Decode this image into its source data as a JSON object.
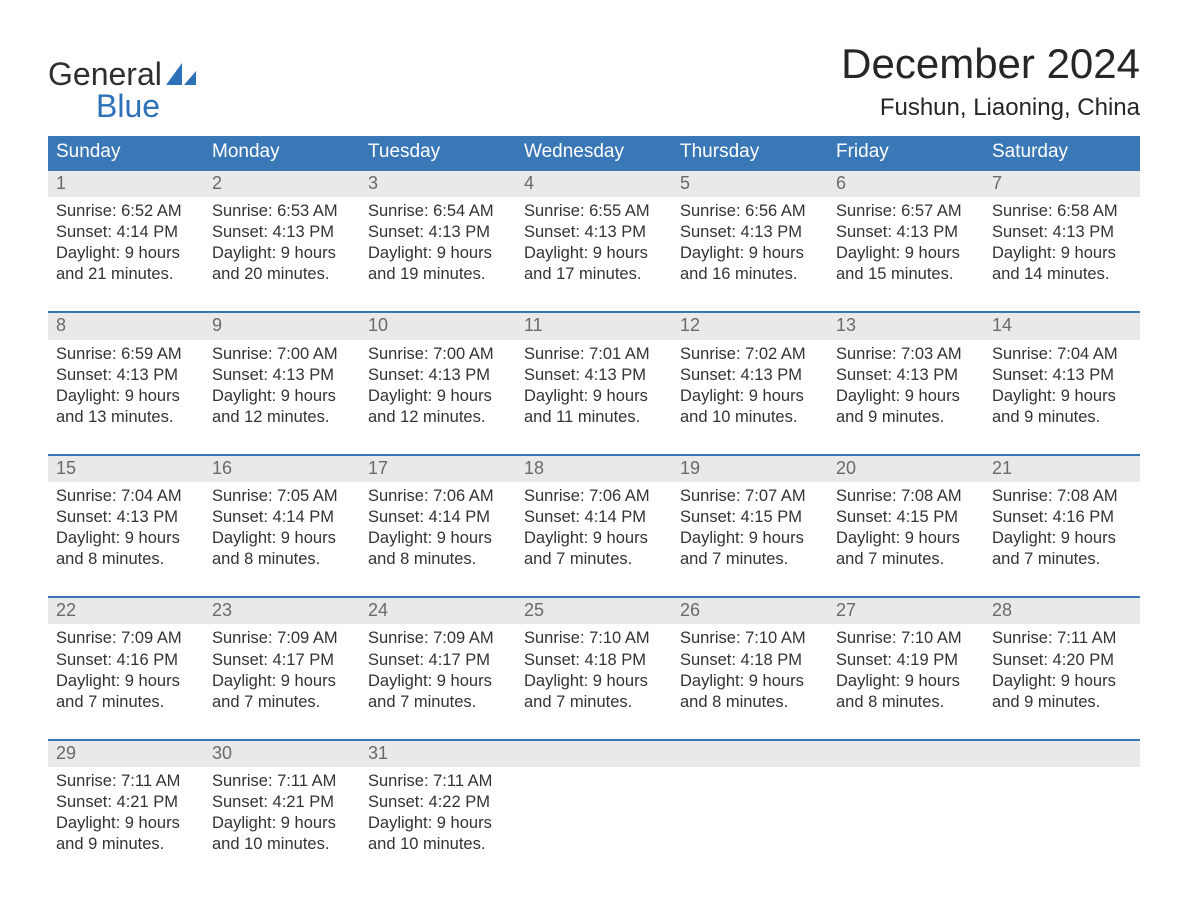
{
  "logo": {
    "line1": "General",
    "line2": "Blue"
  },
  "title": "December 2024",
  "location": "Fushun, Liaoning, China",
  "colors": {
    "header_bg": "#3a77b7",
    "header_text": "#ffffff",
    "daynum_bg": "#e9e9e9",
    "daynum_text": "#6a6a6a",
    "body_text": "#333333",
    "logo_blue": "#2d71b8",
    "week_border": "#3a77b7",
    "page_bg": "#ffffff"
  },
  "weekdays": [
    "Sunday",
    "Monday",
    "Tuesday",
    "Wednesday",
    "Thursday",
    "Friday",
    "Saturday"
  ],
  "weeks": [
    [
      {
        "n": "1",
        "sunrise": "6:52 AM",
        "sunset": "4:14 PM",
        "dl": "9 hours and 21 minutes."
      },
      {
        "n": "2",
        "sunrise": "6:53 AM",
        "sunset": "4:13 PM",
        "dl": "9 hours and 20 minutes."
      },
      {
        "n": "3",
        "sunrise": "6:54 AM",
        "sunset": "4:13 PM",
        "dl": "9 hours and 19 minutes."
      },
      {
        "n": "4",
        "sunrise": "6:55 AM",
        "sunset": "4:13 PM",
        "dl": "9 hours and 17 minutes."
      },
      {
        "n": "5",
        "sunrise": "6:56 AM",
        "sunset": "4:13 PM",
        "dl": "9 hours and 16 minutes."
      },
      {
        "n": "6",
        "sunrise": "6:57 AM",
        "sunset": "4:13 PM",
        "dl": "9 hours and 15 minutes."
      },
      {
        "n": "7",
        "sunrise": "6:58 AM",
        "sunset": "4:13 PM",
        "dl": "9 hours and 14 minutes."
      }
    ],
    [
      {
        "n": "8",
        "sunrise": "6:59 AM",
        "sunset": "4:13 PM",
        "dl": "9 hours and 13 minutes."
      },
      {
        "n": "9",
        "sunrise": "7:00 AM",
        "sunset": "4:13 PM",
        "dl": "9 hours and 12 minutes."
      },
      {
        "n": "10",
        "sunrise": "7:00 AM",
        "sunset": "4:13 PM",
        "dl": "9 hours and 12 minutes."
      },
      {
        "n": "11",
        "sunrise": "7:01 AM",
        "sunset": "4:13 PM",
        "dl": "9 hours and 11 minutes."
      },
      {
        "n": "12",
        "sunrise": "7:02 AM",
        "sunset": "4:13 PM",
        "dl": "9 hours and 10 minutes."
      },
      {
        "n": "13",
        "sunrise": "7:03 AM",
        "sunset": "4:13 PM",
        "dl": "9 hours and 9 minutes."
      },
      {
        "n": "14",
        "sunrise": "7:04 AM",
        "sunset": "4:13 PM",
        "dl": "9 hours and 9 minutes."
      }
    ],
    [
      {
        "n": "15",
        "sunrise": "7:04 AM",
        "sunset": "4:13 PM",
        "dl": "9 hours and 8 minutes."
      },
      {
        "n": "16",
        "sunrise": "7:05 AM",
        "sunset": "4:14 PM",
        "dl": "9 hours and 8 minutes."
      },
      {
        "n": "17",
        "sunrise": "7:06 AM",
        "sunset": "4:14 PM",
        "dl": "9 hours and 8 minutes."
      },
      {
        "n": "18",
        "sunrise": "7:06 AM",
        "sunset": "4:14 PM",
        "dl": "9 hours and 7 minutes."
      },
      {
        "n": "19",
        "sunrise": "7:07 AM",
        "sunset": "4:15 PM",
        "dl": "9 hours and 7 minutes."
      },
      {
        "n": "20",
        "sunrise": "7:08 AM",
        "sunset": "4:15 PM",
        "dl": "9 hours and 7 minutes."
      },
      {
        "n": "21",
        "sunrise": "7:08 AM",
        "sunset": "4:16 PM",
        "dl": "9 hours and 7 minutes."
      }
    ],
    [
      {
        "n": "22",
        "sunrise": "7:09 AM",
        "sunset": "4:16 PM",
        "dl": "9 hours and 7 minutes."
      },
      {
        "n": "23",
        "sunrise": "7:09 AM",
        "sunset": "4:17 PM",
        "dl": "9 hours and 7 minutes."
      },
      {
        "n": "24",
        "sunrise": "7:09 AM",
        "sunset": "4:17 PM",
        "dl": "9 hours and 7 minutes."
      },
      {
        "n": "25",
        "sunrise": "7:10 AM",
        "sunset": "4:18 PM",
        "dl": "9 hours and 7 minutes."
      },
      {
        "n": "26",
        "sunrise": "7:10 AM",
        "sunset": "4:18 PM",
        "dl": "9 hours and 8 minutes."
      },
      {
        "n": "27",
        "sunrise": "7:10 AM",
        "sunset": "4:19 PM",
        "dl": "9 hours and 8 minutes."
      },
      {
        "n": "28",
        "sunrise": "7:11 AM",
        "sunset": "4:20 PM",
        "dl": "9 hours and 9 minutes."
      }
    ],
    [
      {
        "n": "29",
        "sunrise": "7:11 AM",
        "sunset": "4:21 PM",
        "dl": "9 hours and 9 minutes."
      },
      {
        "n": "30",
        "sunrise": "7:11 AM",
        "sunset": "4:21 PM",
        "dl": "9 hours and 10 minutes."
      },
      {
        "n": "31",
        "sunrise": "7:11 AM",
        "sunset": "4:22 PM",
        "dl": "9 hours and 10 minutes."
      },
      {
        "n": "",
        "empty": true
      },
      {
        "n": "",
        "empty": true
      },
      {
        "n": "",
        "empty": true
      },
      {
        "n": "",
        "empty": true
      }
    ]
  ],
  "labels": {
    "sunrise": "Sunrise:",
    "sunset": "Sunset:",
    "daylight": "Daylight:"
  }
}
